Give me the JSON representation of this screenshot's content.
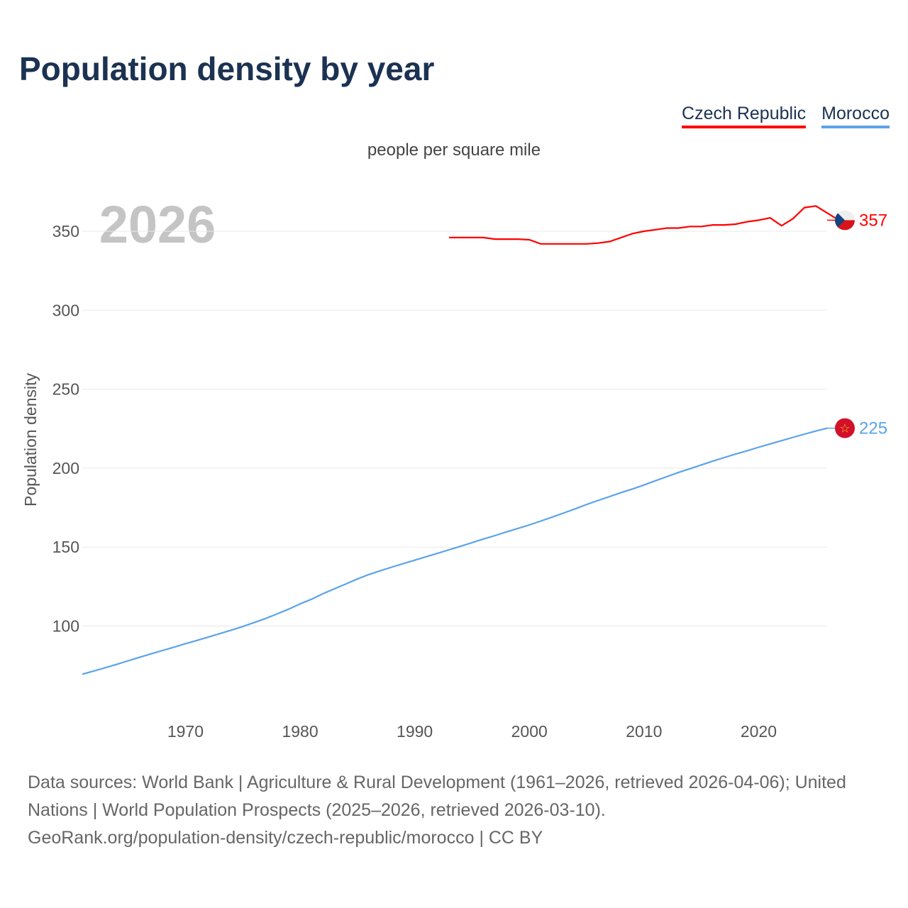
{
  "chart_data": {
    "type": "line",
    "title": "Population density by year",
    "subtitle": "people per square mile",
    "ylabel": "Population density",
    "xlabel": "",
    "year_label": "2026",
    "xlim": [
      1961,
      2026
    ],
    "ylim": [
      40,
      385
    ],
    "x_ticks": [
      1970,
      1980,
      1990,
      2000,
      2010,
      2020
    ],
    "y_ticks": [
      100,
      150,
      200,
      250,
      300,
      350
    ],
    "grid": true,
    "legend": "top-right",
    "series": [
      {
        "name": "Czech Republic",
        "color": "#ff0000",
        "end_label": "357",
        "start_year": 1993,
        "values": [
          346,
          346,
          346,
          346,
          345,
          345,
          345,
          344.6,
          342,
          342,
          342,
          342,
          342,
          342.5,
          343.5,
          346,
          348.5,
          350,
          351,
          352,
          352,
          353,
          353,
          354,
          354,
          354.5,
          356,
          357,
          358.5,
          353.5,
          358,
          365,
          366,
          361.5,
          357
        ]
      },
      {
        "name": "Morocco",
        "color": "#5ba3ea",
        "end_label": "225",
        "start_year": 1961,
        "values": [
          69.5,
          71.5,
          73.6,
          75.7,
          78,
          80.2,
          82.4,
          84.5,
          86.6,
          88.8,
          90.9,
          93,
          95.2,
          97.4,
          99.7,
          102.2,
          104.8,
          107.7,
          110.7,
          114,
          117,
          120.5,
          123.6,
          126.7,
          129.8,
          132.6,
          135,
          137.3,
          139.5,
          141.7,
          143.9,
          146.1,
          148.3,
          150.5,
          152.8,
          155.1,
          157.3,
          159.6,
          161.8,
          164,
          166.5,
          169,
          171.6,
          174.2,
          177,
          179.5,
          182,
          184.5,
          186.8,
          189.3,
          192,
          194.6,
          197.2,
          199.6,
          202,
          204.4,
          206.7,
          208.9,
          211,
          213.2,
          215.3,
          217.4,
          219.5,
          221.5,
          223.5,
          225.3
        ]
      }
    ]
  },
  "footer": {
    "sources": "Data sources: World Bank | Agriculture & Rural Development (1961–2026, retrieved 2026-04-06); United Nations | World Population Prospects (2025–2026, retrieved 2026-03-10).",
    "link": "GeoRank.org/population-density/czech-republic/morocco | CC BY"
  }
}
